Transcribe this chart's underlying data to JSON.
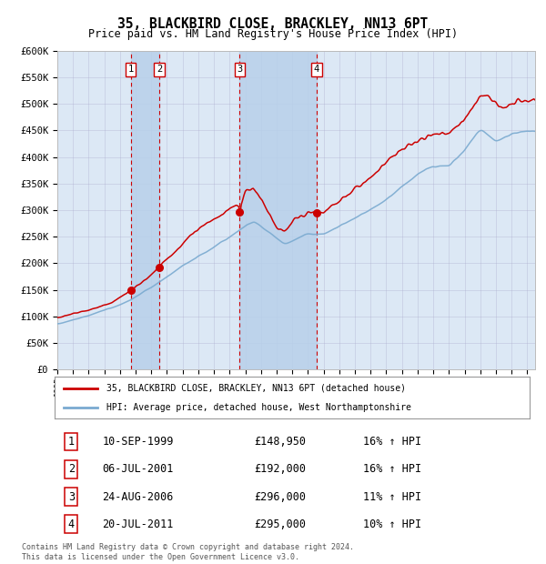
{
  "title": "35, BLACKBIRD CLOSE, BRACKLEY, NN13 6PT",
  "subtitle": "Price paid vs. HM Land Registry's House Price Index (HPI)",
  "ylabel_ticks": [
    "£0",
    "£50K",
    "£100K",
    "£150K",
    "£200K",
    "£250K",
    "£300K",
    "£350K",
    "£400K",
    "£450K",
    "£500K",
    "£550K",
    "£600K"
  ],
  "ytick_values": [
    0,
    50000,
    100000,
    150000,
    200000,
    250000,
    300000,
    350000,
    400000,
    450000,
    500000,
    550000,
    600000
  ],
  "ylim": [
    0,
    600000
  ],
  "sale_dates_float": [
    1999.69,
    2001.5,
    2006.64,
    2011.55
  ],
  "sale_prices": [
    148950,
    192000,
    296000,
    295000
  ],
  "sale_labels": [
    "1",
    "2",
    "3",
    "4"
  ],
  "legend_line1": "35, BLACKBIRD CLOSE, BRACKLEY, NN13 6PT (detached house)",
  "legend_line2": "HPI: Average price, detached house, West Northamptonshire",
  "table_data": [
    {
      "num": "1",
      "date": "10-SEP-1999",
      "price": "£148,950",
      "hpi": "16% ↑ HPI"
    },
    {
      "num": "2",
      "date": "06-JUL-2001",
      "price": "£192,000",
      "hpi": "16% ↑ HPI"
    },
    {
      "num": "3",
      "date": "24-AUG-2006",
      "price": "£296,000",
      "hpi": "11% ↑ HPI"
    },
    {
      "num": "4",
      "date": "20-JUL-2011",
      "price": "£295,000",
      "hpi": "10% ↑ HPI"
    }
  ],
  "footer": "Contains HM Land Registry data © Crown copyright and database right 2024.\nThis data is licensed under the Open Government Licence v3.0.",
  "line_color_red": "#cc0000",
  "line_color_blue": "#7aaad0",
  "bg_color": "#dce8f5",
  "grid_color": "#aaaacc",
  "dashed_color": "#cc0000",
  "marker_color": "#cc0000",
  "shade_color": "#b8d0ea",
  "xstart": 1995,
  "xend": 2025
}
